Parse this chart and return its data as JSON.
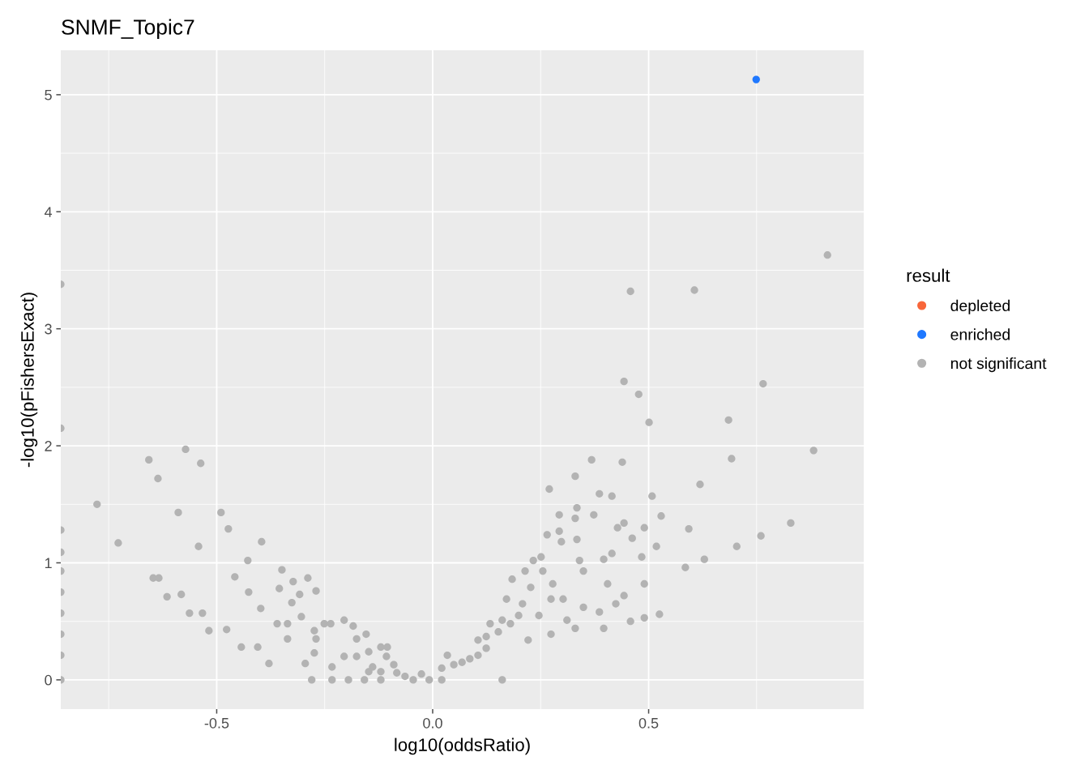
{
  "chart_data": {
    "type": "scatter",
    "title": "SNMF_Topic7",
    "xlabel": "log10(oddsRatio)",
    "ylabel": "-log10(pFishersExact)",
    "legend_title": "result",
    "xlim": [
      -0.861,
      0.998
    ],
    "ylim": [
      -0.25,
      5.38
    ],
    "xticks": [
      {
        "value": -0.5,
        "label": "-0.5"
      },
      {
        "value": 0,
        "label": "0.0"
      },
      {
        "value": 0.5,
        "label": "0.5"
      }
    ],
    "yticks": [
      0,
      1,
      2,
      3,
      4,
      5
    ],
    "grid": true,
    "legend": "right",
    "marker": "circle",
    "series": [
      {
        "name": "depleted",
        "color": "#f8663a"
      },
      {
        "name": "enriched",
        "color": "#1f78ff",
        "x": [
          0.749
        ],
        "values": [
          5.13
        ]
      },
      {
        "name": "not significant",
        "color": "#b3b3b3",
        "x": [
          -0.861,
          -0.861,
          -0.861,
          -0.861,
          -0.861,
          -0.861,
          -0.861,
          -0.861,
          -0.861,
          -0.861,
          -0.777,
          -0.728,
          -0.657,
          -0.636,
          -0.572,
          -0.537,
          -0.589,
          -0.542,
          -0.647,
          -0.634,
          -0.615,
          -0.582,
          -0.563,
          -0.533,
          -0.518,
          -0.477,
          -0.49,
          -0.473,
          -0.458,
          -0.443,
          -0.405,
          -0.428,
          -0.426,
          -0.396,
          -0.398,
          -0.349,
          -0.36,
          -0.336,
          -0.379,
          -0.355,
          -0.323,
          -0.326,
          -0.336,
          -0.308,
          -0.289,
          -0.27,
          -0.304,
          -0.295,
          -0.28,
          -0.274,
          -0.27,
          -0.251,
          -0.236,
          -0.274,
          -0.233,
          -0.205,
          -0.184,
          -0.205,
          -0.195,
          -0.233,
          -0.176,
          -0.176,
          -0.154,
          -0.148,
          -0.139,
          -0.12,
          -0.105,
          -0.107,
          -0.09,
          -0.158,
          -0.12,
          -0.083,
          -0.064,
          -0.045,
          -0.008,
          -0.148,
          -0.12,
          -0.026,
          0.021,
          0.021,
          0.034,
          0.049,
          0.068,
          0.086,
          0.105,
          0.105,
          0.124,
          0.124,
          0.133,
          0.152,
          0.161,
          0.161,
          0.171,
          0.18,
          0.184,
          0.199,
          0.208,
          0.214,
          0.221,
          0.227,
          0.233,
          0.246,
          0.251,
          0.255,
          0.265,
          0.27,
          0.274,
          0.278,
          0.293,
          0.293,
          0.298,
          0.302,
          0.311,
          0.33,
          0.33,
          0.334,
          0.334,
          0.34,
          0.349,
          0.349,
          0.368,
          0.373,
          0.386,
          0.396,
          0.396,
          0.405,
          0.415,
          0.415,
          0.428,
          0.439,
          0.443,
          0.443,
          0.443,
          0.458,
          0.458,
          0.462,
          0.477,
          0.484,
          0.49,
          0.49,
          0.49,
          0.501,
          0.508,
          0.518,
          0.525,
          0.529,
          0.585,
          0.593,
          0.606,
          0.619,
          0.629,
          0.685,
          0.692,
          0.704,
          0.76,
          0.765,
          0.829,
          0.882,
          0.914,
          0.274,
          0.33,
          0.386,
          0.424
        ],
        "values": [
          3.38,
          2.15,
          1.28,
          1.09,
          0.93,
          0.75,
          0.57,
          0.39,
          0.21,
          0,
          1.5,
          1.17,
          1.88,
          1.72,
          1.97,
          1.85,
          1.43,
          1.14,
          0.87,
          0.87,
          0.71,
          0.73,
          0.57,
          0.57,
          0.42,
          0.43,
          1.43,
          1.29,
          0.88,
          0.28,
          0.28,
          1.02,
          0.75,
          1.18,
          0.61,
          0.94,
          0.48,
          0.48,
          0.14,
          0.78,
          0.84,
          0.66,
          0.35,
          0.73,
          0.87,
          0.76,
          0.54,
          0.14,
          0,
          0.42,
          0.35,
          0.48,
          0.48,
          0.23,
          0.11,
          0.51,
          0.46,
          0.2,
          0,
          0,
          0.35,
          0.2,
          0.39,
          0.24,
          0.11,
          0.28,
          0.28,
          0.2,
          0.13,
          0,
          0,
          0.06,
          0.03,
          0,
          0,
          0.07,
          0.07,
          0.05,
          0,
          0.1,
          0.21,
          0.13,
          0.15,
          0.18,
          0.21,
          0.34,
          0.27,
          0.37,
          0.48,
          0.41,
          0,
          0.51,
          0.69,
          0.48,
          0.86,
          0.55,
          0.65,
          0.93,
          0.34,
          0.79,
          1.02,
          0.55,
          1.05,
          0.93,
          1.24,
          1.63,
          0.69,
          0.82,
          1.41,
          1.27,
          1.18,
          0.69,
          0.51,
          1.38,
          1.74,
          1.47,
          1.2,
          1.02,
          0.93,
          0.62,
          1.88,
          1.41,
          1.59,
          1.03,
          0.44,
          0.82,
          1.57,
          1.08,
          1.3,
          1.86,
          2.55,
          1.34,
          0.72,
          3.32,
          0.5,
          1.21,
          2.44,
          1.05,
          1.3,
          0.82,
          0.53,
          2.2,
          1.57,
          1.14,
          0.56,
          1.4,
          0.96,
          1.29,
          3.33,
          1.67,
          1.03,
          2.22,
          1.89,
          1.14,
          1.23,
          2.53,
          1.34,
          1.96,
          3.63,
          0.39,
          0.44,
          0.58,
          0.65
        ]
      }
    ]
  }
}
